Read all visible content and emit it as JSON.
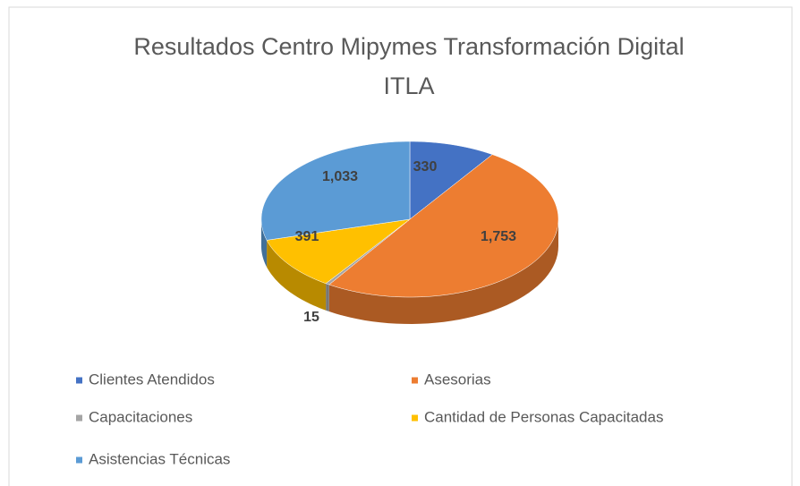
{
  "chart_data": {
    "type": "pie",
    "title": "Resultados Centro Mipymes Transformación Digital ITLA",
    "categories": [
      "Clientes Atendidos",
      "Asesorias",
      "Capacitaciones",
      "Cantidad de Personas Capacitadas",
      "Asistencias Técnicas"
    ],
    "values": [
      330,
      1753,
      15,
      391,
      1033
    ],
    "value_labels": [
      "330",
      "1,753",
      "15",
      "391",
      "1,033"
    ],
    "colors": [
      "#4472c4",
      "#ed7d31",
      "#a5a5a5",
      "#ffc000",
      "#5b9bd5"
    ],
    "legend": "bottom"
  }
}
